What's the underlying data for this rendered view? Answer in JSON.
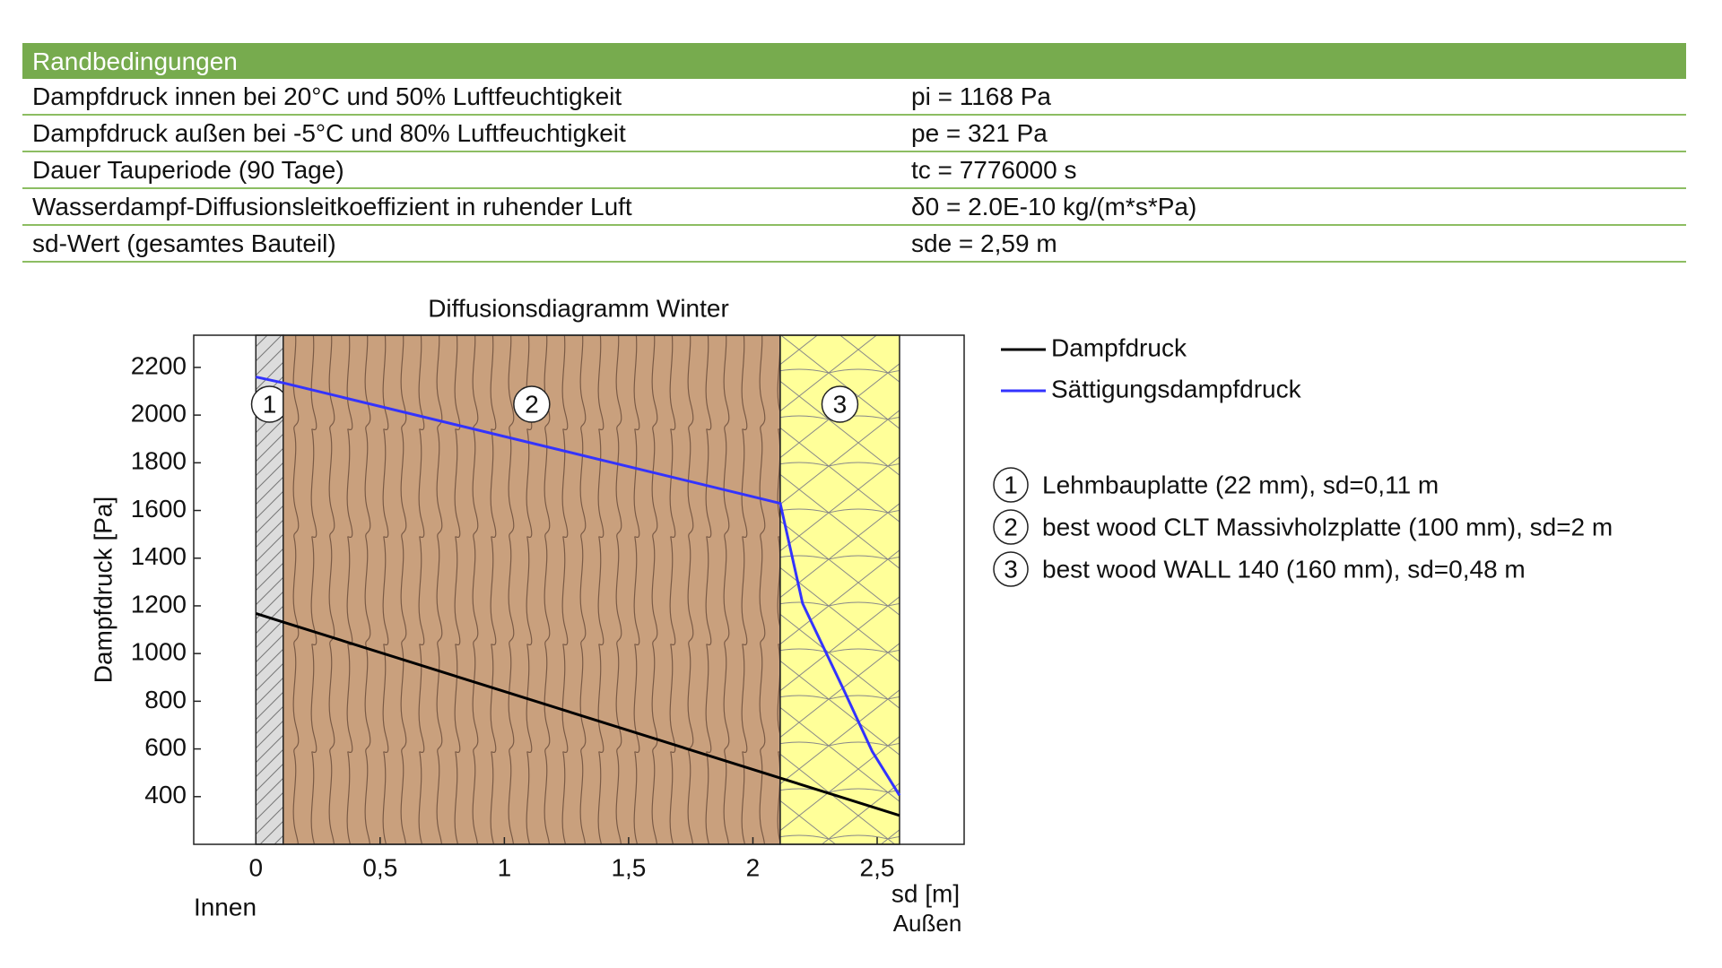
{
  "table": {
    "title": "Randbedingungen",
    "rows": [
      [
        "Dampfdruck innen bei 20°C und 50% Luftfeuchtigkeit",
        "pi = 1168 Pa"
      ],
      [
        "Dampfdruck außen bei -5°C und 80% Luftfeuchtigkeit",
        "pe = 321 Pa"
      ],
      [
        "Dauer Tauperiode (90 Tage)",
        "tc = 7776000 s"
      ],
      [
        "Wasserdampf-Diffusionsleitkoeffizient in ruhender Luft",
        "δ0 = 2.0E-10 kg/(m*s*Pa)"
      ],
      [
        "sd-Wert (gesamtes Bauteil)",
        "sde = 2,59 m"
      ]
    ]
  },
  "chart_data": {
    "type": "line",
    "title": "Diffusionsdiagramm Winter",
    "x_label": "sd [m]",
    "y_label": "Dampfdruck [Pa]",
    "annotations": [
      "Innen",
      "Außen"
    ],
    "xlim": [
      -0.25,
      2.85
    ],
    "xticks": [
      0,
      {
        "value": 0.5,
        "label": "0,5"
      },
      1,
      {
        "value": 1.5,
        "label": "1,5"
      },
      2,
      {
        "value": 2.5,
        "label": "2,5"
      }
    ],
    "ylim": [
      200,
      2335
    ],
    "yticks": [
      400,
      600,
      800,
      1000,
      1200,
      1400,
      1600,
      1800,
      2000,
      2200
    ],
    "series": [
      {
        "name": "Dampfdruck",
        "color": "#000000",
        "x": [
          0,
          0.11,
          2.11,
          2.59
        ],
        "values": [
          1168,
          1132,
          478,
          321
        ]
      },
      {
        "name": "Sättigungsdampfdruck",
        "color": "#3333ff",
        "x": [
          0,
          0.11,
          2.11,
          2.2,
          2.36,
          2.48,
          2.59
        ],
        "values": [
          2160,
          2135,
          1630,
          1210,
          860,
          590,
          405
        ]
      }
    ],
    "layers": [
      {
        "label": "1",
        "name": "Lehmbauplatte (22 mm), sd=0,11 m",
        "start": 0,
        "end": 0.11
      },
      {
        "label": "2",
        "name": "best wood CLT Massivholzplatte (100 mm), sd=2 m",
        "start": 0.11,
        "end": 2.11
      },
      {
        "label": "3",
        "name": "best wood WALL 140 (160 mm), sd=0,48 m",
        "start": 2.11,
        "end": 2.59
      }
    ]
  }
}
